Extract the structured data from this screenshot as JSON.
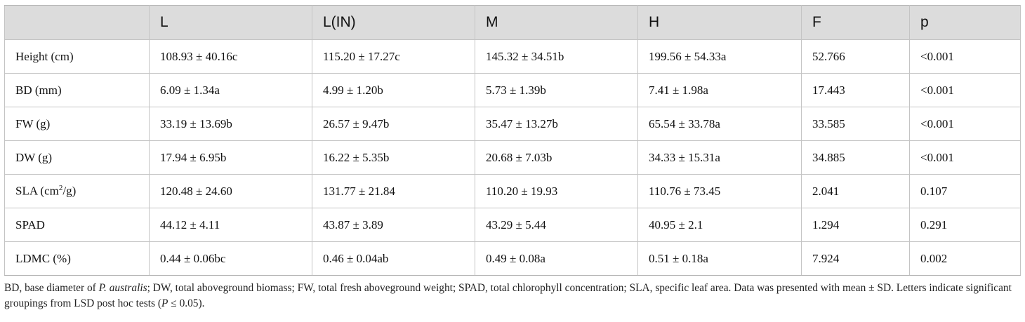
{
  "table": {
    "headers": [
      "",
      "L",
      "L(IN)",
      "M",
      "H",
      "F",
      "p"
    ],
    "rows": [
      {
        "label": "Height (cm)",
        "label_sup": "",
        "label_after": "",
        "cells": [
          "108.93 ± 40.16c",
          "115.20 ± 17.27c",
          "145.32 ± 34.51b",
          "199.56 ± 54.33a",
          "52.766",
          "<0.001"
        ]
      },
      {
        "label": "BD (mm)",
        "label_sup": "",
        "label_after": "",
        "cells": [
          "6.09 ± 1.34a",
          "4.99 ± 1.20b",
          "5.73 ± 1.39b",
          "7.41 ± 1.98a",
          "17.443",
          "<0.001"
        ]
      },
      {
        "label": "FW (g)",
        "label_sup": "",
        "label_after": "",
        "cells": [
          "33.19 ± 13.69b",
          "26.57 ± 9.47b",
          "35.47 ± 13.27b",
          "65.54 ± 33.78a",
          "33.585",
          "<0.001"
        ]
      },
      {
        "label": "DW (g)",
        "label_sup": "",
        "label_after": "",
        "cells": [
          "17.94 ± 6.95b",
          "16.22 ± 5.35b",
          "20.68 ± 7.03b",
          "34.33 ± 15.31a",
          "34.885",
          "<0.001"
        ]
      },
      {
        "label": "SLA (cm",
        "label_sup": "2",
        "label_after": "/g)",
        "cells": [
          "120.48 ± 24.60",
          "131.77 ± 21.84",
          "110.20 ± 19.93",
          "110.76 ± 73.45",
          "2.041",
          "0.107"
        ]
      },
      {
        "label": "SPAD",
        "label_sup": "",
        "label_after": "",
        "cells": [
          "44.12 ± 4.11",
          "43.87 ± 3.89",
          "43.29 ± 5.44",
          "40.95 ± 2.1",
          "1.294",
          "0.291"
        ]
      },
      {
        "label": "LDMC (%)",
        "label_sup": "",
        "label_after": "",
        "cells": [
          "0.44 ± 0.06bc",
          "0.46 ± 0.04ab",
          "0.49 ± 0.08a",
          "0.51 ± 0.18a",
          "7.924",
          "0.002"
        ]
      }
    ]
  },
  "footnote": {
    "part1": "BD, base diameter of ",
    "species": "P. australis",
    "part2": "; DW, total aboveground biomass; FW, total fresh aboveground weight; SPAD, total chlorophyll concentration; SLA, specific leaf area. Data was presented with mean ± SD. Letters indicate significant groupings from LSD post hoc tests (",
    "p_symbol": "P",
    "part3": " ≤ 0.05)."
  }
}
